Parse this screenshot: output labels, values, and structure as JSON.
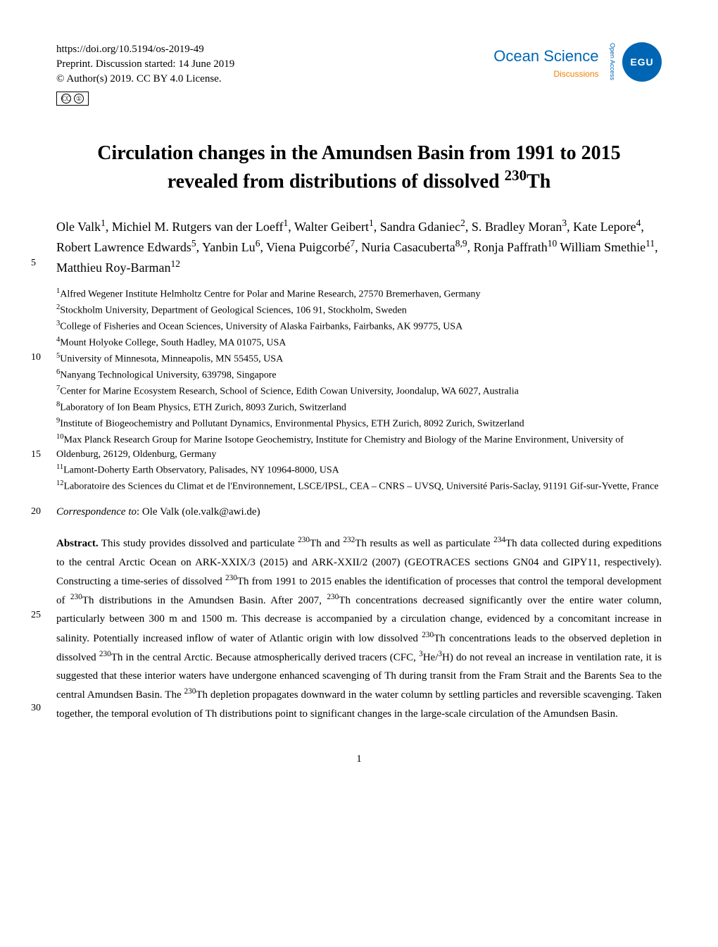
{
  "header": {
    "doi": "https://doi.org/10.5194/os-2019-49",
    "preprint_line": "Preprint. Discussion started: 14 June 2019",
    "copyright": "© Author(s) 2019. CC BY 4.0 License.",
    "cc_label_1": "CC",
    "cc_label_2": "BY",
    "journal": "Ocean Science",
    "discussions": "Discussions",
    "egu": "EGU",
    "open_access": "Open Access"
  },
  "title_line1": "Circulation changes in the Amundsen Basin from 1991 to 2015",
  "title_line2": "revealed from distributions of dissolved ",
  "title_iso": "230",
  "title_th": "Th",
  "authors_html": "Ole Valk<sup>1</sup>, Michiel M. Rutgers van der Loeff<sup>1</sup>, Walter Geibert<sup>1</sup>, Sandra Gdaniec<sup>2</sup>, S. Bradley Moran<sup>3</sup>, Kate Lepore<sup>4</sup>, Robert Lawrence Edwards<sup>5</sup>, Yanbin Lu<sup>6</sup>, Viena Puigcorbé<sup>7</sup>, Nuria Casacuberta<sup>8,9</sup>, Ronja Paffrath<sup>10</sup> William Smethie<sup>11</sup>, Matthieu Roy-Barman<sup>12</sup>",
  "affiliations": [
    "<sup>1</sup>Alfred Wegener Institute Helmholtz Centre for Polar and Marine Research, 27570 Bremerhaven, Germany",
    "<sup>2</sup>Stockholm University, Department of Geological Sciences, 106 91, Stockholm, Sweden",
    "<sup>3</sup>College of Fisheries and Ocean Sciences, University of Alaska Fairbanks, Fairbanks, AK 99775, USA",
    "<sup>4</sup>Mount Holyoke College, South Hadley, MA 01075, USA",
    "<sup>5</sup>University of Minnesota, Minneapolis, MN 55455, USA",
    "<sup>6</sup>Nanyang Technological University, 639798, Singapore",
    "<sup>7</sup>Center for Marine Ecosystem Research, School of Science, Edith Cowan University, Joondalup, WA 6027, Australia",
    "<sup>8</sup>Laboratory of Ion Beam Physics, ETH Zurich, 8093 Zurich, Switzerland",
    "<sup>9</sup>Institute of Biogeochemistry and Pollutant Dynamics, Environmental Physics, ETH Zurich, 8092 Zurich, Switzerland",
    "<sup>10</sup>Max Planck Research Group for Marine Isotope Geochemistry, Institute for Chemistry and Biology of the Marine Environment, University of Oldenburg, 26129, Oldenburg, Germany",
    "<sup>11</sup>Lamont-Doherty Earth Observatory, Palisades, NY 10964-8000, USA",
    "<sup>12</sup>Laboratoire des Sciences du Climat et de l'Environnement, LSCE/IPSL, CEA – CNRS – UVSQ, Université Paris-Saclay, 91191 Gif-sur-Yvette, France"
  ],
  "line_numbers": [
    "5",
    "10",
    "15",
    "20",
    "25",
    "30"
  ],
  "correspondence_label": "Correspondence to",
  "correspondence_value": ": Ole Valk (ole.valk@awi.de)",
  "abstract_label": "Abstract.",
  "abstract_text": " This study provides dissolved and particulate <sup>230</sup>Th and <sup>232</sup>Th results as well as particulate <sup>234</sup>Th data collected during expeditions to the central Arctic Ocean on ARK-XXIX/3 (2015) and ARK-XXII/2 (2007) (GEOTRACES sections GN04 and GIPY11, respectively). Constructing a time-series of dissolved <sup>230</sup>Th from 1991 to 2015 enables the identification of processes that control the temporal development of <sup>230</sup>Th distributions in the Amundsen Basin. After 2007, <sup>230</sup>Th concentrations decreased significantly over the entire water column, particularly between 300 m and 1500 m. This decrease is accompanied by a circulation change, evidenced by a concomitant increase in salinity. Potentially increased inflow of water of Atlantic origin with low dissolved <sup>230</sup>Th concentrations leads to the observed depletion in dissolved <sup>230</sup>Th in the central Arctic. Because atmospherically derived tracers (CFC, <sup>3</sup>He/<sup>3</sup>H) do not reveal an increase in ventilation rate, it is suggested that these interior waters have undergone enhanced scavenging of Th during transit from the Fram Strait and the Barents Sea to the central Amundsen Basin. The <sup>230</sup>Th depletion propagates downward in the water column by settling particles and reversible scavenging. Taken together, the temporal evolution of Th distributions point to significant changes in the large-scale circulation of the Amundsen Basin.",
  "page_number": "1",
  "colors": {
    "journal_blue": "#0066b3",
    "discussions_orange": "#ee7f00",
    "background": "#ffffff",
    "text": "#000000"
  },
  "typography": {
    "title_fontsize": 28,
    "authors_fontsize": 18,
    "affiliations_fontsize": 14,
    "body_fontsize": 15,
    "journal_fontsize": 22
  }
}
